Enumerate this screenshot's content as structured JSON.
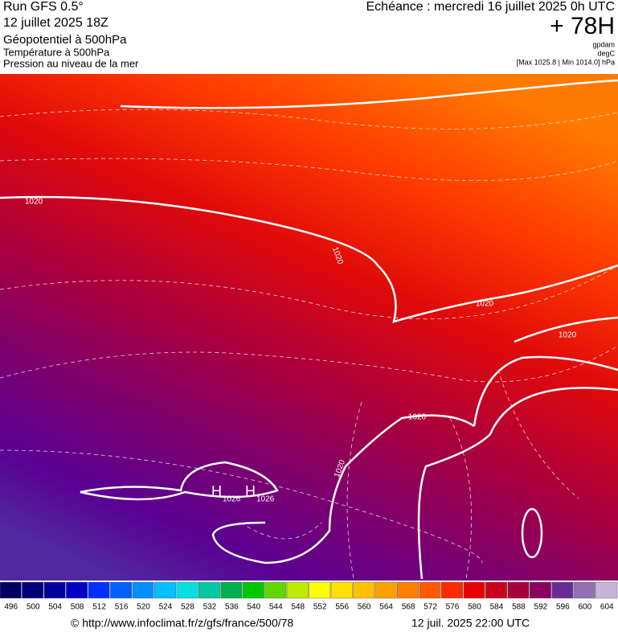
{
  "header": {
    "model": "Run GFS 0.5°",
    "run": "12 juillet 2025 18Z",
    "field1": "Géopotentiel à 500hPa",
    "field2": "Température à 500hPa",
    "field3": "Pression au niveau de la mer",
    "echeance": "Echéance : mercredi 16 juillet 2025 0h UTC",
    "lead": "+ 78H",
    "unit1": "gpdam",
    "unit2": "degC",
    "unit3": "[Max 1025.8 | Min 1014.0] hPa"
  },
  "map": {
    "contour_labels": [
      "1020",
      "1020",
      "1020",
      "1020",
      "1020",
      "1020"
    ],
    "highs": [
      {
        "symbol": "H",
        "value": "1026"
      },
      {
        "symbol": "H",
        "value": "1026"
      }
    ]
  },
  "legend": {
    "values": [
      496,
      500,
      504,
      508,
      512,
      516,
      520,
      524,
      528,
      532,
      536,
      540,
      544,
      548,
      552,
      556,
      560,
      564,
      568,
      572,
      576,
      580,
      584,
      588,
      592,
      596,
      600,
      604
    ],
    "colors": [
      "#000060",
      "#00007a",
      "#00009c",
      "#0000c8",
      "#0030ff",
      "#0060ff",
      "#0090ff",
      "#00c0ff",
      "#00e0e0",
      "#00c8a0",
      "#00b050",
      "#00c800",
      "#60d800",
      "#c0ea00",
      "#ffff00",
      "#ffe000",
      "#ffc000",
      "#ffa000",
      "#ff8000",
      "#ff5a00",
      "#ff2a00",
      "#e80000",
      "#c8001c",
      "#a8003c",
      "#880060",
      "#6a2a96",
      "#9070b0",
      "#c8b4d8"
    ]
  },
  "footer": {
    "url": "© http://www.infoclimat.fr/z/gfs/france/500/78",
    "valid": "12 juil. 2025 22:00 UTC"
  }
}
